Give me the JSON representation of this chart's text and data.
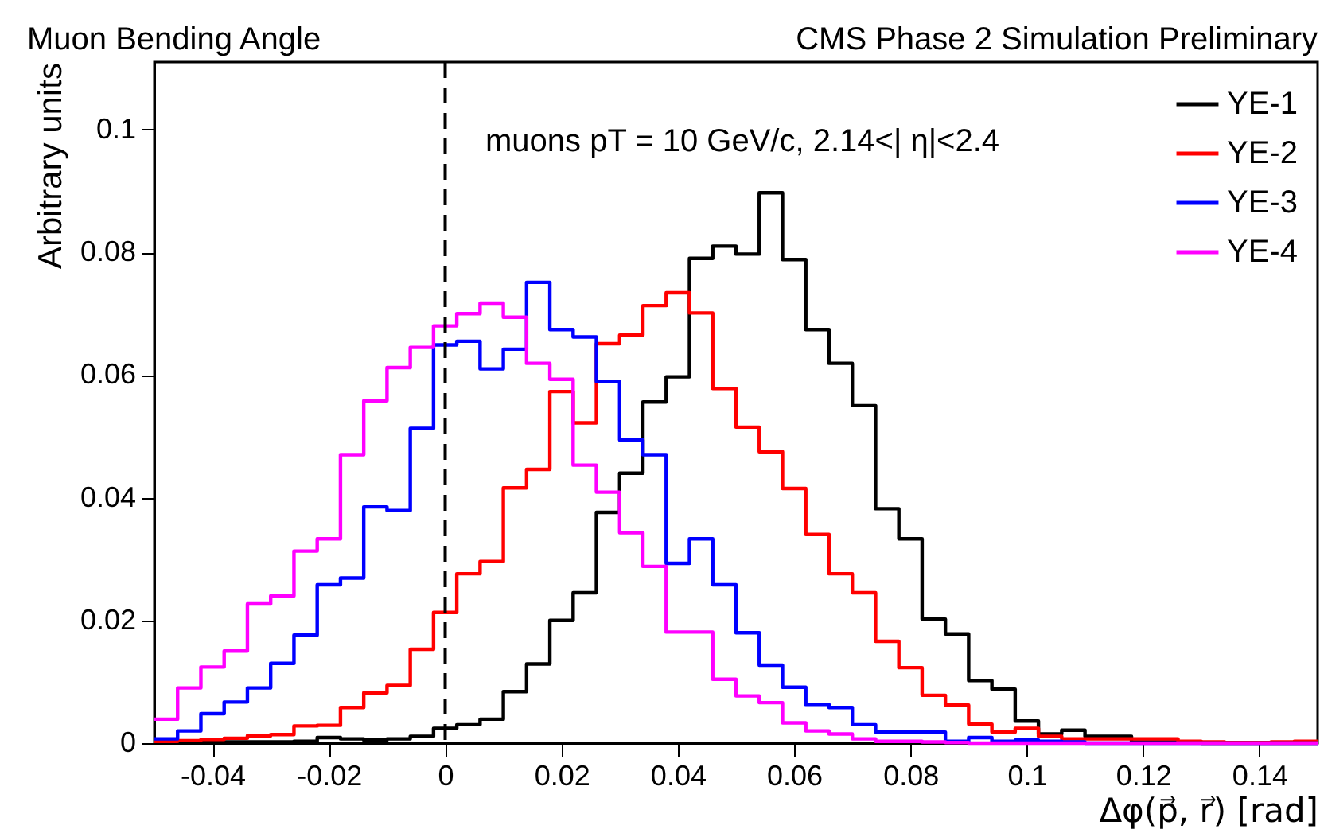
{
  "chart_data": {
    "type": "histogram",
    "title": "Muon Bending Angle",
    "xlabel": "Δφ(p⃗, r⃗) [rad]",
    "ylabel": "Arbitrary units",
    "annotations": [
      "CMS Phase 2 Simulation Preliminary",
      "muons   pT = 10 GeV/c,  2.14<| η|<2.4"
    ],
    "bins": [
      -0.05,
      -0.046,
      -0.042,
      -0.038,
      -0.034,
      -0.03,
      -0.026,
      -0.022,
      -0.018,
      -0.014,
      -0.01,
      -0.006,
      -0.002,
      0.002,
      0.006,
      0.01,
      0.014,
      0.018,
      0.022,
      0.026,
      0.03,
      0.034,
      0.038,
      0.042,
      0.046,
      0.05,
      0.054,
      0.058,
      0.062,
      0.066,
      0.07,
      0.074,
      0.078,
      0.082,
      0.086,
      0.09,
      0.094,
      0.098,
      0.102,
      0.106,
      0.11,
      0.114,
      0.118,
      0.122,
      0.126,
      0.13,
      0.134,
      0.138,
      0.142,
      0.146,
      0.15
    ],
    "series": [
      {
        "name": "YE-1",
        "color": "#000000",
        "values": [
          0.0002,
          0.0002,
          0.0002,
          0.0002,
          0.0002,
          0.0002,
          0.0003,
          0.0009,
          0.0007,
          0.0005,
          0.0007,
          0.0011,
          0.0024,
          0.003,
          0.0039,
          0.0084,
          0.0129,
          0.02,
          0.0245,
          0.0376,
          0.044,
          0.0556,
          0.0597,
          0.079,
          0.081,
          0.0797,
          0.0897,
          0.0788,
          0.0674,
          0.0619,
          0.055,
          0.0382,
          0.0333,
          0.0202,
          0.0178,
          0.0102,
          0.0088,
          0.0036,
          0.0015,
          0.0021,
          0.0011,
          0.0011,
          0.0002,
          0.0002,
          0.0001,
          0,
          0,
          0,
          0,
          0
        ]
      },
      {
        "name": "YE-2",
        "color": "#ff0000",
        "values": [
          0.0003,
          0.0004,
          0.0006,
          0.0008,
          0.0012,
          0.0014,
          0.0028,
          0.0029,
          0.0058,
          0.0082,
          0.0094,
          0.0153,
          0.0213,
          0.0276,
          0.0296,
          0.0416,
          0.0446,
          0.0573,
          0.0522,
          0.0651,
          0.0665,
          0.0713,
          0.0734,
          0.0701,
          0.0578,
          0.0515,
          0.0475,
          0.0415,
          0.034,
          0.0276,
          0.0245,
          0.0166,
          0.0123,
          0.0078,
          0.0062,
          0.0031,
          0.0018,
          0.0024,
          0.0011,
          0.0007,
          0.0007,
          0.0007,
          0.0007,
          0.0007,
          0.0003,
          0.0002,
          0.0001,
          0.0001,
          0.0002,
          0.0003
        ]
      },
      {
        "name": "YE-3",
        "color": "#0000ff",
        "values": [
          0.0007,
          0.002,
          0.0048,
          0.0067,
          0.009,
          0.013,
          0.0176,
          0.0258,
          0.0269,
          0.0385,
          0.0379,
          0.0513,
          0.0649,
          0.0655,
          0.061,
          0.0642,
          0.0751,
          0.0674,
          0.0662,
          0.0589,
          0.0494,
          0.047,
          0.0293,
          0.0333,
          0.0258,
          0.018,
          0.0127,
          0.0091,
          0.0063,
          0.0058,
          0.003,
          0.0018,
          0.0018,
          0.0018,
          0.0003,
          0.0009,
          0.0003,
          0.0005,
          0.0003,
          0.0002,
          0,
          0,
          0,
          0,
          0,
          0,
          0,
          0,
          0,
          0
        ]
      },
      {
        "name": "YE-4",
        "color": "#ff00ff",
        "values": [
          0.0039,
          0.009,
          0.0124,
          0.015,
          0.0227,
          0.024,
          0.0313,
          0.0333,
          0.047,
          0.0558,
          0.0612,
          0.0645,
          0.068,
          0.07,
          0.0717,
          0.0694,
          0.0619,
          0.0593,
          0.0453,
          0.0409,
          0.0343,
          0.0288,
          0.0181,
          0.0181,
          0.0104,
          0.0077,
          0.0066,
          0.0033,
          0.002,
          0.0015,
          0.0007,
          0.0003,
          0.0003,
          0.0002,
          0.0001,
          0,
          0,
          0,
          0,
          0,
          0,
          0,
          0,
          0,
          0,
          0,
          0,
          0,
          0,
          0
        ]
      }
    ],
    "xlim": [
      -0.05,
      0.15
    ],
    "xticks": [
      -0.04,
      -0.02,
      0,
      0.02,
      0.04,
      0.06,
      0.08,
      0.1,
      0.12,
      0.14
    ],
    "ylim": [
      0,
      0.111
    ],
    "yticks": [
      0,
      0.02,
      0.04,
      0.06,
      0.08,
      0.1
    ],
    "ref_lines": [
      {
        "axis": "x",
        "value": 0,
        "color": "#000000",
        "line_style": "dashed"
      }
    ],
    "legend": "top right",
    "grid": false,
    "marker": "none",
    "line_style": "solid"
  }
}
